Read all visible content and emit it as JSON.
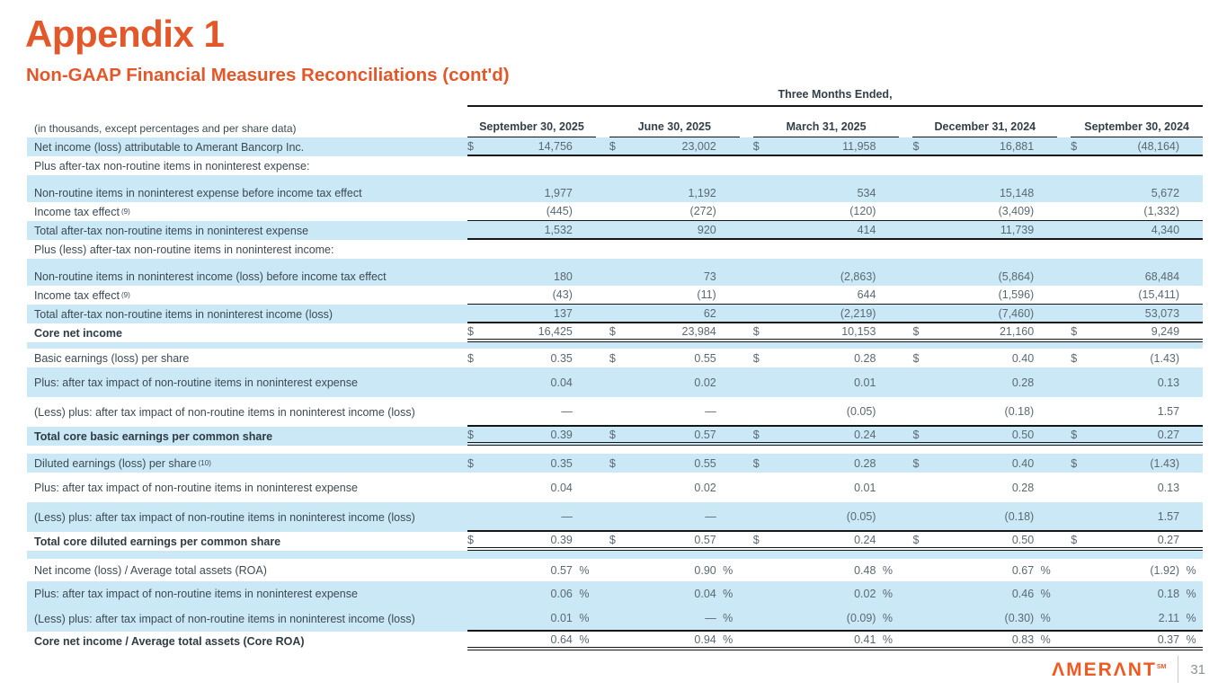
{
  "page": {
    "title": "Appendix 1",
    "subtitle": "Non-GAAP Financial Measures Reconciliations (cont'd)",
    "page_number": "31",
    "brand": "AMERANT",
    "brand_display": "ΛMERΛNT",
    "brand_sup": "SM"
  },
  "colors": {
    "accent_orange": "#E2582A",
    "logo_orange": "#F05A22",
    "row_highlight_blue": "#CBE8F7",
    "rule_black": "#161616",
    "label_text": "#3C4A52",
    "value_text": "#5A6970",
    "page_number_gray": "#8A9299"
  },
  "table": {
    "span_header": "Three Months Ended,",
    "unit_note": "(in thousands, except percentages and per share data)",
    "columns": [
      "September 30, 2025",
      "June 30, 2025",
      "March 31, 2025",
      "December 31, 2024",
      "September 30, 2024"
    ],
    "rows": [
      {
        "t": "d",
        "bg": "b",
        "label": "Net income (loss) attributable to Amerant Bancorp Inc.",
        "dollar": true,
        "values": [
          "14,756",
          "23,002",
          "11,958",
          "16,881",
          "(48,164)"
        ],
        "line": "t"
      },
      {
        "t": "d",
        "bg": "w",
        "label": "Plus after-tax non-routine items in noninterest expense:",
        "values": null
      },
      {
        "t": "s",
        "bg": "b",
        "size": "sm"
      },
      {
        "t": "d",
        "bg": "b",
        "label": "Non-routine items in noninterest expense before income tax effect",
        "values": [
          "1,977",
          "1,192",
          "534",
          "15,148",
          "5,672"
        ]
      },
      {
        "t": "d",
        "bg": "w",
        "label": "Income tax effect",
        "sup": "(9)",
        "values": [
          "(445)",
          "(272)",
          "(120)",
          "(3,409)",
          "(1,332)"
        ],
        "line": "s"
      },
      {
        "t": "d",
        "bg": "b",
        "label": "Total after-tax non-routine items in noninterest expense",
        "values": [
          "1,532",
          "920",
          "414",
          "11,739",
          "4,340"
        ],
        "line": "t"
      },
      {
        "t": "d",
        "bg": "w",
        "label": "Plus (less) after-tax non-routine items in noninterest income:",
        "values": null
      },
      {
        "t": "s",
        "bg": "b",
        "size": "sm"
      },
      {
        "t": "d",
        "bg": "b",
        "label": "Non-routine items in noninterest income (loss) before income tax effect",
        "values": [
          "180",
          "73",
          "(2,863)",
          "(5,864)",
          "68,484"
        ]
      },
      {
        "t": "d",
        "bg": "w",
        "label": "Income tax effect",
        "sup": "(9)",
        "values": [
          "(43)",
          "(11)",
          "644",
          "(1,596)",
          "(15,411)"
        ],
        "line": "s"
      },
      {
        "t": "d",
        "bg": "b",
        "label": "Total after-tax non-routine items in noninterest income (loss)",
        "values": [
          "137",
          "62",
          "(2,219)",
          "(7,460)",
          "53,073"
        ],
        "line": "t"
      },
      {
        "t": "d",
        "bg": "w",
        "bold": true,
        "label": "Core net income",
        "dollar": true,
        "values": [
          "16,425",
          "23,984",
          "10,153",
          "21,160",
          "9,249"
        ],
        "line": "d"
      },
      {
        "t": "s",
        "bg": "b",
        "size": "xs"
      },
      {
        "t": "d",
        "bg": "w",
        "label": "Basic earnings (loss) per share",
        "dollar": true,
        "values": [
          "0.35",
          "0.55",
          "0.28",
          "0.40",
          "(1.43)"
        ]
      },
      {
        "t": "d",
        "bg": "b",
        "kind": "tall",
        "label": "Plus: after tax impact of non-routine items in noninterest expense",
        "values": [
          "0.04",
          "0.02",
          "0.01",
          "0.28",
          "0.13"
        ]
      },
      {
        "t": "d",
        "bg": "w",
        "kind": "tall",
        "label": "(Less) plus: after tax impact of non-routine items in noninterest income (loss)",
        "values": [
          "—",
          "—",
          "(0.05)",
          "(0.18)",
          "1.57"
        ],
        "line": "t"
      },
      {
        "t": "d",
        "bg": "b",
        "bold": true,
        "label": "Total core basic earnings per common share",
        "dollar": true,
        "values": [
          "0.39",
          "0.57",
          "0.24",
          "0.50",
          "0.27"
        ],
        "line": "d"
      },
      {
        "t": "s",
        "bg": "w",
        "size": "sm"
      },
      {
        "t": "d",
        "bg": "b",
        "label": "Diluted earnings (loss) per share",
        "sup": "(10)",
        "dollar": true,
        "values": [
          "0.35",
          "0.55",
          "0.28",
          "0.40",
          "(1.43)"
        ]
      },
      {
        "t": "d",
        "bg": "w",
        "kind": "tall",
        "label": "Plus: after tax impact of non-routine items in noninterest expense",
        "values": [
          "0.04",
          "0.02",
          "0.01",
          "0.28",
          "0.13"
        ]
      },
      {
        "t": "d",
        "bg": "b",
        "kind": "tall",
        "label": "(Less) plus: after tax impact of non-routine items in noninterest income (loss)",
        "values": [
          "—",
          "—",
          "(0.05)",
          "(0.18)",
          "1.57"
        ],
        "line": "t"
      },
      {
        "t": "d",
        "bg": "w",
        "bold": true,
        "label": "Total core diluted earnings per common share",
        "dollar": true,
        "values": [
          "0.39",
          "0.57",
          "0.24",
          "0.50",
          "0.27"
        ],
        "line": "d"
      },
      {
        "t": "s",
        "bg": "b",
        "size": "sm"
      },
      {
        "t": "d",
        "bg": "w",
        "kind": "med",
        "label": "Net income (loss) / Average total assets (ROA)",
        "pct": true,
        "values": [
          "0.57",
          "0.90",
          "0.48",
          "0.67",
          "(1.92)"
        ]
      },
      {
        "t": "d",
        "bg": "b",
        "kind": "tall2",
        "label": "Plus: after tax impact of non-routine items in noninterest expense",
        "pct": true,
        "values": [
          "0.06",
          "0.04",
          "0.02",
          "0.46",
          "0.18"
        ]
      },
      {
        "t": "d",
        "bg": "b",
        "kind": "tall2",
        "label": "(Less) plus: after tax impact of non-routine items in noninterest income (loss)",
        "pct": true,
        "values": [
          "0.01",
          "—",
          "(0.09)",
          "(0.30)",
          "2.11"
        ],
        "line": "t"
      },
      {
        "t": "d",
        "bg": "w",
        "bold": true,
        "label": "Core net income / Average total assets (Core ROA)",
        "pct": true,
        "values": [
          "0.64",
          "0.94",
          "0.41",
          "0.83",
          "0.37"
        ],
        "line": "d"
      }
    ]
  }
}
